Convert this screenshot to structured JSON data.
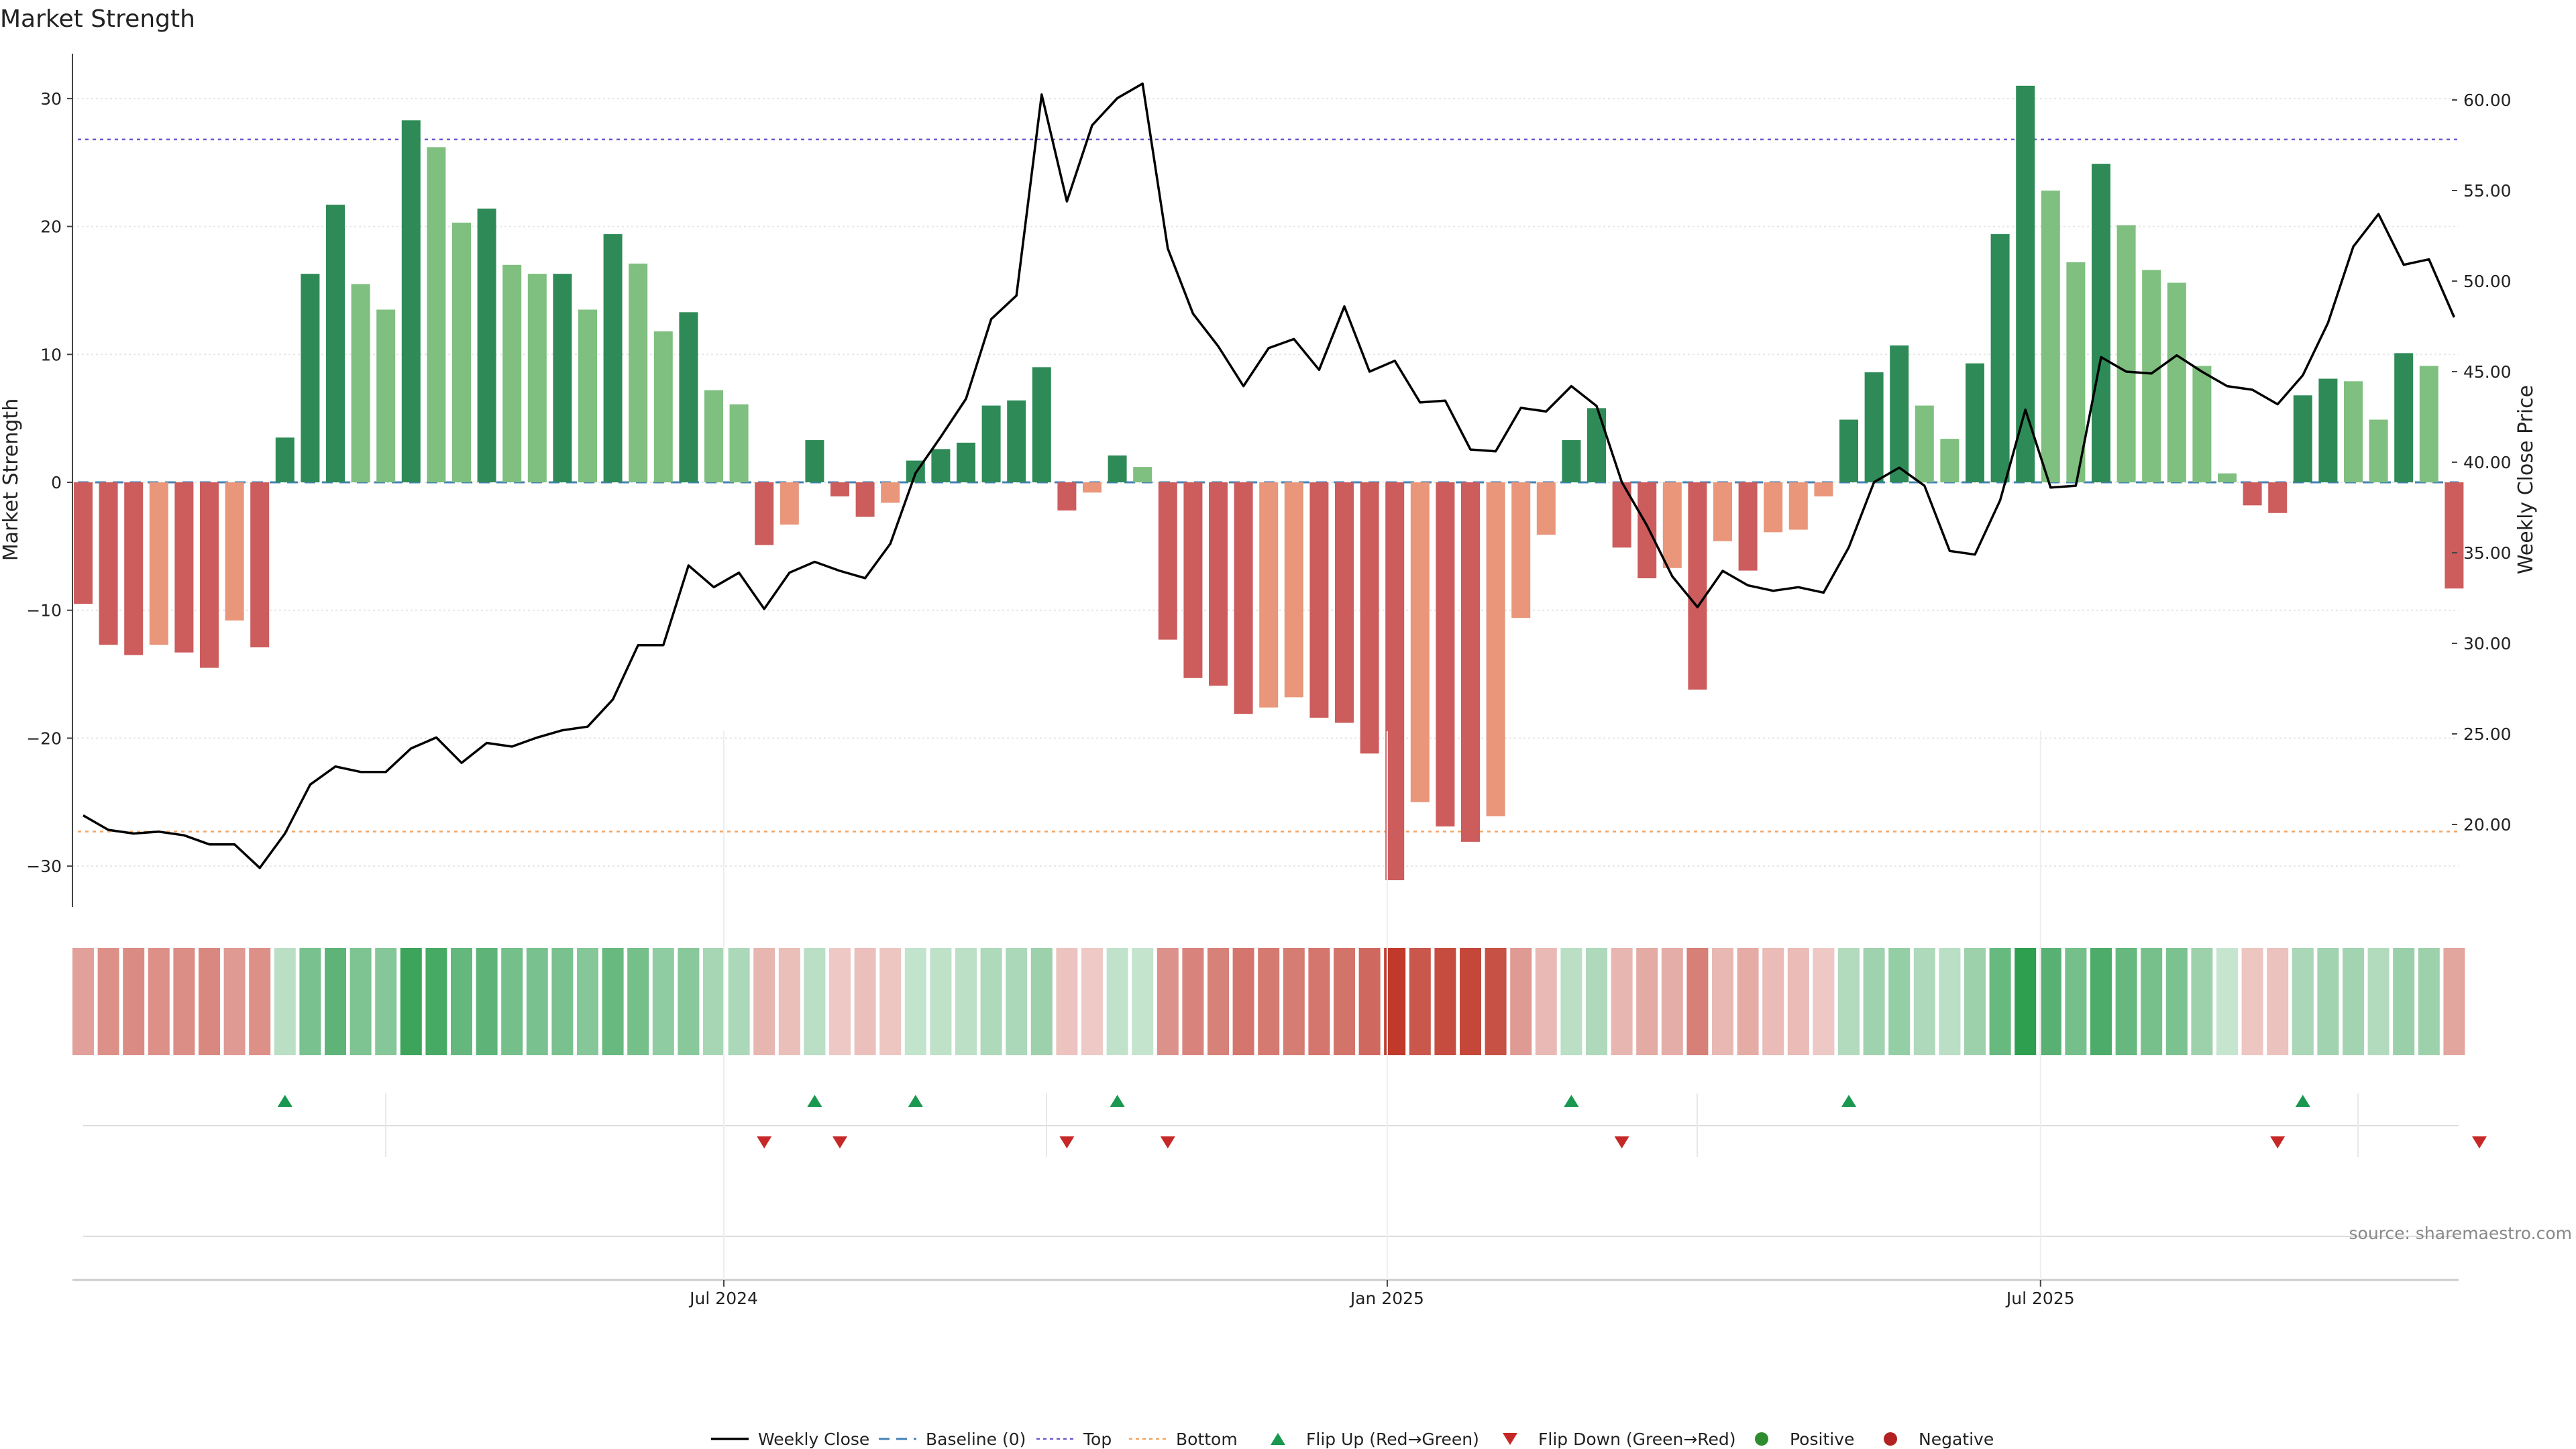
{
  "chart_data": {
    "type": "bar",
    "title": "Market Strength",
    "ylabel_left": "Market Strength",
    "ylabel_right": "Weekly Close Price",
    "y_left_range": [
      -33,
      33
    ],
    "y_left_ticks": [
      -30,
      -20,
      -10,
      0,
      10,
      20,
      30
    ],
    "y_left_tick_labels": [
      "−30",
      "−20",
      "−10",
      "0",
      "10",
      "20",
      "30"
    ],
    "y_right_range": [
      15.4,
      62.5
    ],
    "y_right_ticks": [
      "20.00",
      "25.00",
      "30.00",
      "35.00",
      "40.00",
      "45.00",
      "50.00",
      "55.00",
      "60.00"
    ],
    "x_tick_labels": [
      {
        "label": "Jul 2024",
        "week": 25.4
      },
      {
        "label": "Jan 2025",
        "week": 51.7
      },
      {
        "label": "Jul 2025",
        "week": 77.6
      }
    ],
    "top_line": 26.8,
    "bottom_line": -27.3,
    "strength": [
      -9.5,
      -12.7,
      -13.5,
      -12.7,
      -13.3,
      -14.5,
      -10.8,
      -12.9,
      3.5,
      16.3,
      21.7,
      15.5,
      13.5,
      28.3,
      26.2,
      20.3,
      21.4,
      17.0,
      16.3,
      16.3,
      13.5,
      19.4,
      17.1,
      11.8,
      13.3,
      7.2,
      6.1,
      -4.9,
      -3.3,
      3.3,
      -1.1,
      -2.7,
      -1.6,
      1.7,
      2.6,
      3.1,
      6.0,
      6.4,
      9.0,
      -2.2,
      -0.8,
      2.1,
      1.2,
      -12.3,
      -15.3,
      -15.9,
      -18.1,
      -17.6,
      -16.8,
      -18.4,
      -18.8,
      -21.2,
      -31.1,
      -25.0,
      -26.9,
      -28.1,
      -26.1,
      -10.6,
      -4.1,
      3.3,
      5.8,
      -5.1,
      -7.5,
      -6.7,
      -16.2,
      -4.6,
      -6.9,
      -3.9,
      -3.7,
      -1.1,
      4.9,
      8.6,
      10.7,
      6.0,
      3.4,
      9.3,
      19.4,
      31.0,
      22.8,
      17.2,
      24.9,
      20.1,
      16.6,
      15.6,
      9.1,
      0.7,
      -1.8,
      -2.4,
      6.8,
      8.1,
      7.9,
      4.9,
      10.1,
      9.1,
      -8.3
    ],
    "bar_kind": [
      "s",
      "s",
      "s",
      "w",
      "s",
      "s",
      "w",
      "s",
      "s",
      "s",
      "s",
      "w",
      "w",
      "s",
      "w",
      "w",
      "s",
      "w",
      "w",
      "s",
      "w",
      "s",
      "w",
      "w",
      "s",
      "w",
      "w",
      "s",
      "w",
      "s",
      "s",
      "s",
      "w",
      "s",
      "s",
      "s",
      "s",
      "s",
      "s",
      "s",
      "w",
      "s",
      "w",
      "s",
      "s",
      "s",
      "s",
      "w",
      "w",
      "s",
      "s",
      "s",
      "s",
      "w",
      "s",
      "s",
      "w",
      "w",
      "w",
      "s",
      "s",
      "s",
      "s",
      "w",
      "s",
      "w",
      "s",
      "w",
      "w",
      "w",
      "s",
      "s",
      "s",
      "w",
      "w",
      "s",
      "s",
      "s",
      "w",
      "w",
      "s",
      "w",
      "w",
      "w",
      "w",
      "w",
      "s",
      "s",
      "s",
      "s",
      "w",
      "w",
      "s",
      "w",
      "s"
    ],
    "weekly_close": [
      20.5,
      19.7,
      19.5,
      19.6,
      19.4,
      18.9,
      18.9,
      17.6,
      19.5,
      22.2,
      23.2,
      22.9,
      22.9,
      24.2,
      24.8,
      23.4,
      24.5,
      24.3,
      24.8,
      25.2,
      25.4,
      26.9,
      29.9,
      29.9,
      34.3,
      33.1,
      33.9,
      31.9,
      33.9,
      34.5,
      34.0,
      33.6,
      35.5,
      39.4,
      41.4,
      43.5,
      47.9,
      49.2,
      60.3,
      54.4,
      58.6,
      60.1,
      60.9,
      51.8,
      48.2,
      46.4,
      44.2,
      46.3,
      46.8,
      45.1,
      48.6,
      45.0,
      45.6,
      43.3,
      43.4,
      40.7,
      40.6,
      43.0,
      42.8,
      44.2,
      43.1,
      38.9,
      36.5,
      33.7,
      32.0,
      34.0,
      33.2,
      32.9,
      33.1,
      32.8,
      35.3,
      38.9,
      39.7,
      38.7,
      35.1,
      34.9,
      37.9,
      42.9,
      38.6,
      38.7,
      45.8,
      45.0,
      44.9,
      45.9,
      45.0,
      44.2,
      44.0,
      43.2,
      44.8,
      47.7,
      51.9,
      53.7,
      50.9,
      51.2,
      48.0
    ],
    "flip_up_weeks": [
      8,
      29,
      33,
      41,
      59,
      70,
      88
    ],
    "flip_down_weeks": [
      27,
      30,
      39,
      43,
      61,
      87,
      95
    ],
    "colors": {
      "pos_strong": "#2e8b57",
      "pos_weak": "#7fbf7f",
      "neg_strong": "#cd5c5c",
      "neg_weak": "#e9967a",
      "line": "#000000",
      "baseline": "#4682b4",
      "top": "#6a5acd",
      "bottom": "#f4a460",
      "flip_up": "#1a9850",
      "flip_down": "#c62828",
      "positive": "#2e8b2e",
      "negative": "#b22222"
    },
    "legend": [
      {
        "label": "Weekly Close",
        "kind": "line"
      },
      {
        "label": "Baseline (0)",
        "kind": "dashed"
      },
      {
        "label": "Top",
        "kind": "dotted-top"
      },
      {
        "label": "Bottom",
        "kind": "dotted-bottom"
      },
      {
        "label": "Flip Up (Red→Green)",
        "kind": "tri-up"
      },
      {
        "label": "Flip Down (Green→Red)",
        "kind": "tri-down"
      },
      {
        "label": "Positive",
        "kind": "dot-pos"
      },
      {
        "label": "Negative",
        "kind": "dot-neg"
      }
    ],
    "source": "source: sharemaestro.com"
  }
}
